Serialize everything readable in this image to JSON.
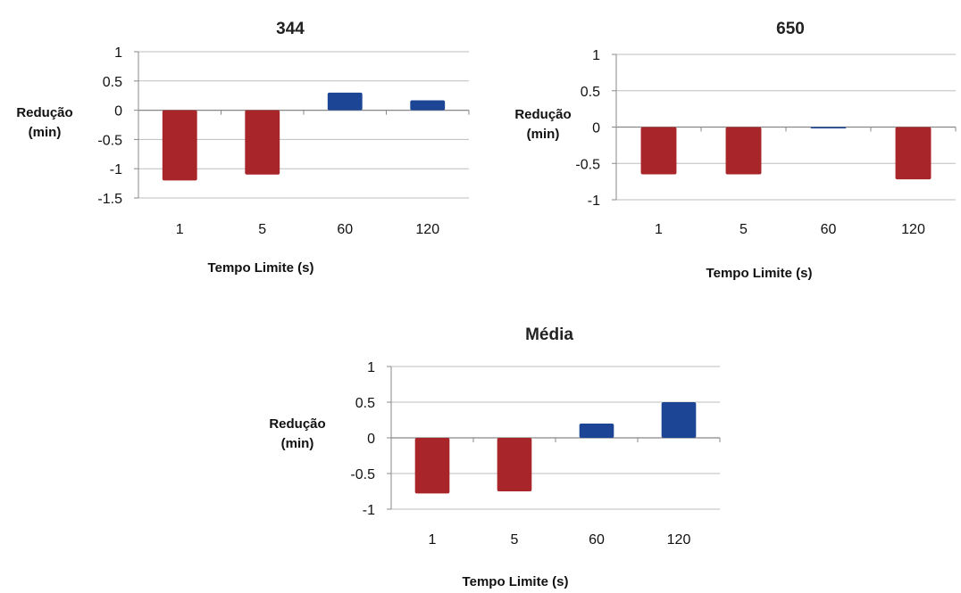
{
  "chart_data": [
    {
      "type": "bar",
      "title": "344",
      "xlabel": "Tempo Limite (s)",
      "ylabel_lines": [
        "Redução",
        "(min)"
      ],
      "categories": [
        "1",
        "5",
        "60",
        "120"
      ],
      "values": [
        -1.2,
        -1.1,
        0.3,
        0.17
      ],
      "ylim": [
        -1.5,
        1
      ],
      "yticks": [
        1,
        0.5,
        0,
        -0.5,
        -1,
        -1.5
      ],
      "ytick_labels": [
        "1",
        "0.5",
        "0",
        "-0.5",
        "-1",
        "-1.5"
      ],
      "grid": true,
      "colors": {
        "negative": "#a8262a",
        "positive": "#1c4596"
      }
    },
    {
      "type": "bar",
      "title": "650",
      "xlabel": "Tempo Limite (s)",
      "ylabel_lines": [
        "Redução",
        "(min)"
      ],
      "categories": [
        "1",
        "5",
        "60",
        "120"
      ],
      "values": [
        -0.65,
        -0.65,
        0.0,
        -0.72
      ],
      "ylim": [
        -1,
        1
      ],
      "yticks": [
        1,
        0.5,
        0,
        -0.5,
        -1
      ],
      "ytick_labels": [
        "1",
        "0.5",
        "0",
        "-0.5",
        "-1"
      ],
      "grid": true,
      "colors": {
        "negative": "#a8262a",
        "positive": "#1c4596"
      }
    },
    {
      "type": "bar",
      "title": "Média",
      "xlabel": "Tempo Limite (s)",
      "ylabel_lines": [
        "Redução",
        "(min)"
      ],
      "categories": [
        "1",
        "5",
        "60",
        "120"
      ],
      "values": [
        -0.78,
        -0.75,
        0.2,
        0.5
      ],
      "ylim": [
        -1,
        1
      ],
      "yticks": [
        1,
        0.5,
        0,
        -0.5,
        -1
      ],
      "ytick_labels": [
        "1",
        "0.5",
        "0",
        "-0.5",
        "-1"
      ],
      "grid": true,
      "colors": {
        "negative": "#a8262a",
        "positive": "#1c4596"
      }
    }
  ]
}
